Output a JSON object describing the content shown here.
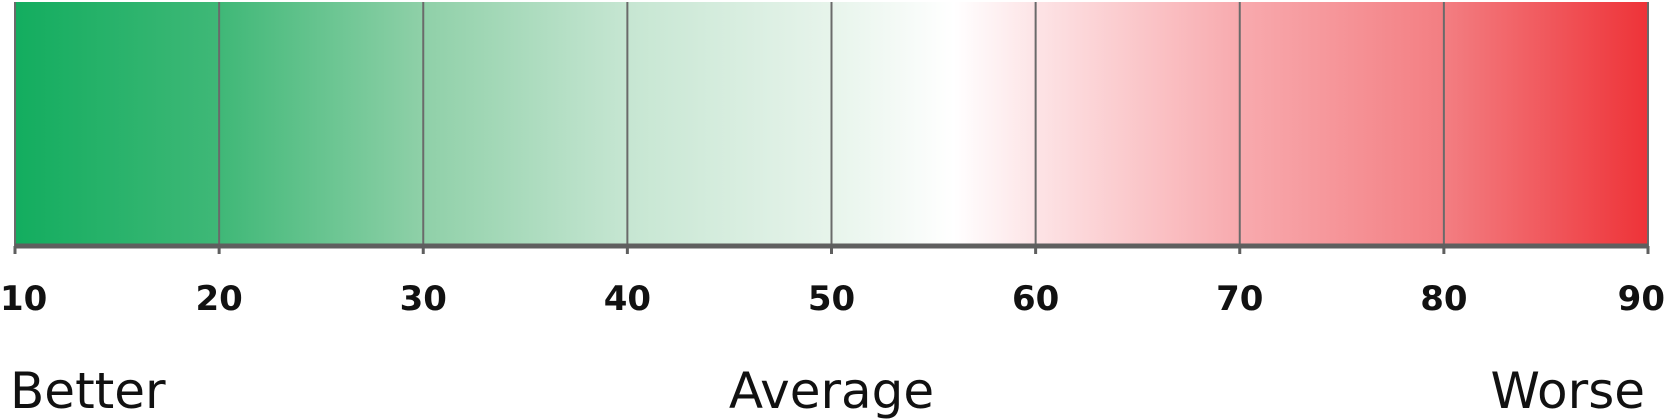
{
  "scale": {
    "min": 10,
    "max": 90,
    "ticks": [
      "10",
      "20",
      "30",
      "40",
      "50",
      "60",
      "70",
      "80",
      "90"
    ],
    "tick_values": [
      10,
      20,
      30,
      40,
      50,
      60,
      70,
      80,
      90
    ],
    "gradient_stops": [
      {
        "value": 10,
        "color": "#13ad5f"
      },
      {
        "value": 20,
        "color": "#3fb877"
      },
      {
        "value": 30,
        "color": "#8fd0a8"
      },
      {
        "value": 40,
        "color": "#c6e6d2"
      },
      {
        "value": 50,
        "color": "#e7f4eb"
      },
      {
        "value": 56,
        "color": "#ffffff"
      },
      {
        "value": 60,
        "color": "#fde4e6"
      },
      {
        "value": 70,
        "color": "#f8aaae"
      },
      {
        "value": 80,
        "color": "#f37e82"
      },
      {
        "value": 90,
        "color": "#ee3338"
      }
    ],
    "labels": {
      "better": "Better",
      "average": "Average",
      "worse": "Worse"
    },
    "label_values": {
      "better": 10,
      "average": 50,
      "worse": 90
    },
    "colors": {
      "divider": "#6a6a6a",
      "axis": "#5f5f5f",
      "text": "#111111"
    }
  }
}
